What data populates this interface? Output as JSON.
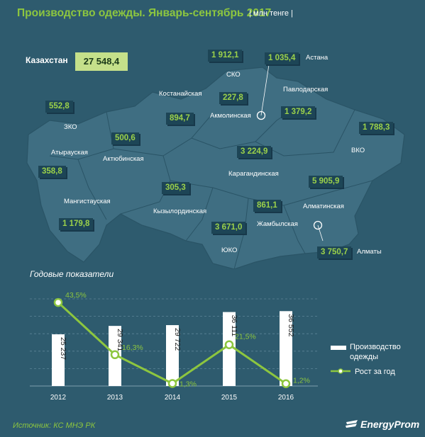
{
  "title": "Производство одежды. Январь-сентябрь 2017",
  "unit": "| млн тенге |",
  "total": {
    "label": "Казахстан",
    "value": "27 548,4"
  },
  "regions": [
    {
      "id": "zko",
      "name": "ЗКО",
      "value": "552,8"
    },
    {
      "id": "atyrau",
      "name": "Атырауская",
      "value": "358,8"
    },
    {
      "id": "mangystau",
      "name": "Мангистауская",
      "value": "1 179,8"
    },
    {
      "id": "aktobe",
      "name": "Актюбинская",
      "value": "500,6"
    },
    {
      "id": "kostanay",
      "name": "Костанайская",
      "value": "894,7"
    },
    {
      "id": "sko",
      "name": "СКО",
      "value": "1 912,1"
    },
    {
      "id": "astana",
      "name": "Астана",
      "value": "1 035,4"
    },
    {
      "id": "akmola",
      "name": "Акмолинская",
      "value": "227,8"
    },
    {
      "id": "pavlodar",
      "name": "Павлодарская",
      "value": "1 379,2"
    },
    {
      "id": "vko",
      "name": "ВКО",
      "value": "1 788,3"
    },
    {
      "id": "karaganda",
      "name": "Карагандинская",
      "value": "3 224,9"
    },
    {
      "id": "kyzylorda",
      "name": "Кызылординская",
      "value": "305,3"
    },
    {
      "id": "ukо",
      "name": "ЮКО",
      "value": "3 671,0"
    },
    {
      "id": "zhambyl",
      "name": "Жамбылская",
      "value": "861,1"
    },
    {
      "id": "almaty-obl",
      "name": "Алматинская",
      "value": "5 905,9"
    },
    {
      "id": "almaty",
      "name": "Алматы",
      "value": "3 750,7"
    }
  ],
  "section_title": "Годовые показатели",
  "chart_data": {
    "type": "bar",
    "categories": [
      "2012",
      "2013",
      "2014",
      "2015",
      "2016"
    ],
    "series": [
      {
        "name": "Производство одежды",
        "type": "bar",
        "values": [
          25237,
          29341,
          29722,
          36111,
          36552
        ],
        "labels": [
          "25 237",
          "29 341",
          "29 722",
          "36 111",
          "36 552"
        ]
      },
      {
        "name": "Рост за год",
        "type": "line",
        "values": [
          43.5,
          16.3,
          1.3,
          21.5,
          1.2
        ],
        "labels": [
          "43,5%",
          "16,3%",
          "1,3%",
          "21,5%",
          "1,2%"
        ]
      }
    ],
    "grid": true,
    "legend": "right"
  },
  "legend": {
    "production": "Производство одежды",
    "growth": "Рост за год"
  },
  "source": "Источник: КС МНЭ РК",
  "brand": "EnergyProm",
  "colors": {
    "accent": "#8dc63f",
    "background": "#2e5b6e",
    "map": "#3f6e82"
  }
}
